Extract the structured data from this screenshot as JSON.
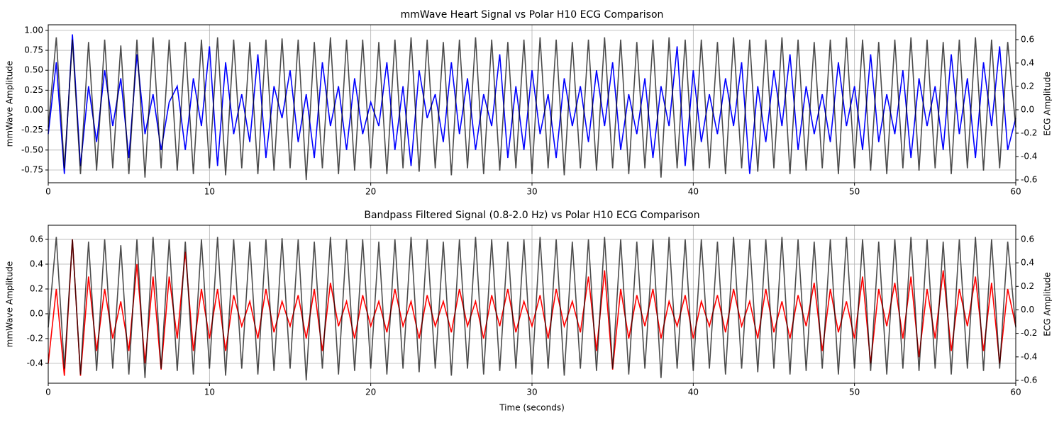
{
  "chart_data": [
    {
      "type": "line",
      "title": "mmWave Heart Signal vs Polar H10 ECG Comparison",
      "ylabel": "mmWave Amplitude",
      "y2label": "ECG Amplitude",
      "x": [
        0,
        0.5,
        1,
        1.5,
        2,
        2.5,
        3,
        3.5,
        4,
        4.5,
        5,
        5.5,
        6,
        6.5,
        7,
        7.5,
        8,
        8.5,
        9,
        9.5,
        10,
        10.5,
        11,
        11.5,
        12,
        12.5,
        13,
        13.5,
        14,
        14.5,
        15,
        15.5,
        16,
        16.5,
        17,
        17.5,
        18,
        18.5,
        19,
        19.5,
        20,
        20.5,
        21,
        21.5,
        22,
        22.5,
        23,
        23.5,
        24,
        24.5,
        25,
        25.5,
        26,
        26.5,
        27,
        27.5,
        28,
        28.5,
        29,
        29.5,
        30,
        30.5,
        31,
        31.5,
        32,
        32.5,
        33,
        33.5,
        34,
        34.5,
        35,
        35.5,
        36,
        36.5,
        37,
        37.5,
        38,
        38.5,
        39,
        39.5,
        40,
        40.5,
        41,
        41.5,
        42,
        42.5,
        43,
        43.5,
        44,
        44.5,
        45,
        45.5,
        46,
        46.5,
        47,
        47.5,
        48,
        48.5,
        49,
        49.5,
        50,
        50.5,
        51,
        51.5,
        52,
        52.5,
        53,
        53.5,
        54,
        54.5,
        55,
        55.5,
        56,
        56.5,
        57,
        57.5,
        58,
        58.5,
        59,
        59.5,
        60
      ],
      "series": [
        {
          "color": "#0000ff",
          "values": [
            -0.3,
            0.6,
            -0.8,
            0.95,
            -0.7,
            0.3,
            -0.4,
            0.5,
            -0.2,
            0.4,
            -0.6,
            0.7,
            -0.3,
            0.2,
            -0.5,
            0.1,
            0.3,
            -0.5,
            0.4,
            -0.2,
            0.8,
            -0.7,
            0.6,
            -0.3,
            0.2,
            -0.4,
            0.7,
            -0.6,
            0.3,
            -0.1,
            0.5,
            -0.4,
            0.2,
            -0.6,
            0.6,
            -0.2,
            0.3,
            -0.5,
            0.4,
            -0.3,
            0.1,
            -0.2,
            0.6,
            -0.5,
            0.3,
            -0.7,
            0.5,
            -0.1,
            0.2,
            -0.4,
            0.6,
            -0.3,
            0.4,
            -0.5,
            0.2,
            -0.2,
            0.7,
            -0.6,
            0.3,
            -0.5,
            0.5,
            -0.3,
            0.2,
            -0.6,
            0.4,
            -0.2,
            0.3,
            -0.4,
            0.5,
            -0.2,
            0.6,
            -0.5,
            0.2,
            -0.3,
            0.4,
            -0.6,
            0.3,
            -0.2,
            0.8,
            -0.7,
            0.5,
            -0.4,
            0.2,
            -0.3,
            0.4,
            -0.2,
            0.6,
            -0.8,
            0.3,
            -0.4,
            0.5,
            -0.2,
            0.7,
            -0.5,
            0.3,
            -0.3,
            0.2,
            -0.4,
            0.6,
            -0.2,
            0.3,
            -0.5,
            0.7,
            -0.4,
            0.2,
            -0.3,
            0.5,
            -0.6,
            0.4,
            -0.2,
            0.3,
            -0.5,
            0.7,
            -0.3,
            0.4,
            -0.6,
            0.6,
            -0.2,
            0.8,
            -0.5,
            -0.1
          ]
        },
        {
          "color": "#000000",
          "alpha": 0.7,
          "axis": "y2",
          "values": [
            -0.15,
            0.62,
            -0.5,
            0.6,
            -0.55,
            0.58,
            -0.52,
            0.6,
            -0.5,
            0.55,
            -0.55,
            0.6,
            -0.58,
            0.62,
            -0.5,
            0.6,
            -0.52,
            0.58,
            -0.55,
            0.6,
            -0.5,
            0.62,
            -0.56,
            0.6,
            -0.5,
            0.58,
            -0.55,
            0.6,
            -0.52,
            0.61,
            -0.5,
            0.6,
            -0.6,
            0.58,
            -0.5,
            0.62,
            -0.55,
            0.6,
            -0.52,
            0.6,
            -0.5,
            0.58,
            -0.55,
            0.6,
            -0.5,
            0.62,
            -0.53,
            0.6,
            -0.5,
            0.58,
            -0.56,
            0.6,
            -0.5,
            0.62,
            -0.55,
            0.6,
            -0.52,
            0.58,
            -0.5,
            0.6,
            -0.55,
            0.62,
            -0.5,
            0.6,
            -0.56,
            0.58,
            -0.5,
            0.6,
            -0.52,
            0.62,
            -0.5,
            0.6,
            -0.55,
            0.58,
            -0.5,
            0.6,
            -0.58,
            0.62,
            -0.5,
            0.6,
            -0.52,
            0.6,
            -0.5,
            0.58,
            -0.55,
            0.62,
            -0.5,
            0.6,
            -0.53,
            0.6,
            -0.5,
            0.62,
            -0.55,
            0.6,
            -0.52,
            0.58,
            -0.5,
            0.6,
            -0.55,
            0.62,
            -0.5,
            0.6,
            -0.52,
            0.58,
            -0.55,
            0.6,
            -0.5,
            0.62,
            -0.52,
            0.6,
            -0.5,
            0.58,
            -0.55,
            0.6,
            -0.5,
            0.62,
            -0.52,
            0.6,
            -0.5,
            0.58,
            -0.15
          ]
        }
      ],
      "xlim": [
        0,
        60
      ],
      "xticks": [
        0,
        10,
        20,
        30,
        40,
        50,
        60
      ],
      "ylim": [
        -0.91,
        1.07
      ],
      "yticks": [
        {
          "value": -0.75,
          "label": "-0.75"
        },
        {
          "value": -0.5,
          "label": "-0.50"
        },
        {
          "value": -0.25,
          "label": "-0.25"
        },
        {
          "value": 0,
          "label": "0.00"
        },
        {
          "value": 0.25,
          "label": "0.25"
        },
        {
          "value": 0.5,
          "label": "0.50"
        },
        {
          "value": 0.75,
          "label": "0.75"
        },
        {
          "value": 1,
          "label": "1.00"
        }
      ],
      "y2lim": [
        -0.624,
        0.727
      ],
      "y2ticks": [
        -0.6,
        -0.4,
        -0.2,
        {
          "value": 0,
          "label": "0.0"
        },
        0.2,
        0.4,
        0.6
      ],
      "grid": true
    },
    {
      "type": "line",
      "title": "Bandpass Filtered Signal (0.8-2.0 Hz) vs Polar H10 ECG Comparison",
      "ylabel": "mmWave Amplitude",
      "y2label": "ECG Amplitude",
      "xlabel": "Time (seconds)",
      "x": [
        0,
        0.5,
        1,
        1.5,
        2,
        2.5,
        3,
        3.5,
        4,
        4.5,
        5,
        5.5,
        6,
        6.5,
        7,
        7.5,
        8,
        8.5,
        9,
        9.5,
        10,
        10.5,
        11,
        11.5,
        12,
        12.5,
        13,
        13.5,
        14,
        14.5,
        15,
        15.5,
        16,
        16.5,
        17,
        17.5,
        18,
        18.5,
        19,
        19.5,
        20,
        20.5,
        21,
        21.5,
        22,
        22.5,
        23,
        23.5,
        24,
        24.5,
        25,
        25.5,
        26,
        26.5,
        27,
        27.5,
        28,
        28.5,
        29,
        29.5,
        30,
        30.5,
        31,
        31.5,
        32,
        32.5,
        33,
        33.5,
        34,
        34.5,
        35,
        35.5,
        36,
        36.5,
        37,
        37.5,
        38,
        38.5,
        39,
        39.5,
        40,
        40.5,
        41,
        41.5,
        42,
        42.5,
        43,
        43.5,
        44,
        44.5,
        45,
        45.5,
        46,
        46.5,
        47,
        47.5,
        48,
        48.5,
        49,
        49.5,
        50,
        50.5,
        51,
        51.5,
        52,
        52.5,
        53,
        53.5,
        54,
        54.5,
        55,
        55.5,
        56,
        56.5,
        57,
        57.5,
        58,
        58.5,
        59,
        59.5,
        60
      ],
      "series": [
        {
          "color": "#ff0000",
          "values": [
            -0.4,
            0.2,
            -0.5,
            0.6,
            -0.5,
            0.3,
            -0.3,
            0.2,
            -0.2,
            0.1,
            -0.3,
            0.4,
            -0.4,
            0.3,
            -0.45,
            0.3,
            -0.2,
            0.5,
            -0.3,
            0.2,
            -0.2,
            0.2,
            -0.3,
            0.15,
            -0.1,
            0.1,
            -0.2,
            0.2,
            -0.15,
            0.1,
            -0.1,
            0.15,
            -0.2,
            0.2,
            -0.3,
            0.25,
            -0.1,
            0.1,
            -0.2,
            0.15,
            -0.1,
            0.1,
            -0.15,
            0.2,
            -0.1,
            0.1,
            -0.2,
            0.15,
            -0.1,
            0.1,
            -0.15,
            0.2,
            -0.1,
            0.1,
            -0.2,
            0.15,
            -0.1,
            0.2,
            -0.15,
            0.1,
            -0.1,
            0.15,
            -0.2,
            0.2,
            -0.1,
            0.1,
            -0.15,
            0.3,
            -0.3,
            0.35,
            -0.45,
            0.2,
            -0.2,
            0.15,
            -0.1,
            0.2,
            -0.2,
            0.1,
            -0.1,
            0.15,
            -0.2,
            0.1,
            -0.1,
            0.15,
            -0.15,
            0.2,
            -0.1,
            0.1,
            -0.2,
            0.2,
            -0.15,
            0.1,
            -0.2,
            0.15,
            -0.1,
            0.25,
            -0.3,
            0.2,
            -0.15,
            0.1,
            -0.2,
            0.3,
            -0.4,
            0.2,
            -0.1,
            0.25,
            -0.2,
            0.3,
            -0.35,
            0.2,
            -0.2,
            0.35,
            -0.3,
            0.2,
            -0.1,
            0.3,
            -0.3,
            0.25,
            -0.4,
            0.2,
            -0.1
          ]
        },
        {
          "color": "#000000",
          "alpha": 0.7,
          "axis": "y2",
          "values": [
            -0.15,
            0.62,
            -0.5,
            0.6,
            -0.55,
            0.58,
            -0.52,
            0.6,
            -0.5,
            0.55,
            -0.55,
            0.6,
            -0.58,
            0.62,
            -0.5,
            0.6,
            -0.52,
            0.58,
            -0.55,
            0.6,
            -0.5,
            0.62,
            -0.56,
            0.6,
            -0.5,
            0.58,
            -0.55,
            0.6,
            -0.52,
            0.61,
            -0.5,
            0.6,
            -0.6,
            0.58,
            -0.5,
            0.62,
            -0.55,
            0.6,
            -0.52,
            0.6,
            -0.5,
            0.58,
            -0.55,
            0.6,
            -0.5,
            0.62,
            -0.53,
            0.6,
            -0.5,
            0.58,
            -0.56,
            0.6,
            -0.5,
            0.62,
            -0.55,
            0.6,
            -0.52,
            0.58,
            -0.5,
            0.6,
            -0.55,
            0.62,
            -0.5,
            0.6,
            -0.56,
            0.58,
            -0.5,
            0.6,
            -0.52,
            0.62,
            -0.5,
            0.6,
            -0.55,
            0.58,
            -0.5,
            0.6,
            -0.58,
            0.62,
            -0.5,
            0.6,
            -0.52,
            0.6,
            -0.5,
            0.58,
            -0.55,
            0.62,
            -0.5,
            0.6,
            -0.53,
            0.6,
            -0.5,
            0.62,
            -0.55,
            0.6,
            -0.52,
            0.58,
            -0.5,
            0.6,
            -0.55,
            0.62,
            -0.5,
            0.6,
            -0.52,
            0.58,
            -0.55,
            0.6,
            -0.5,
            0.62,
            -0.52,
            0.6,
            -0.5,
            0.58,
            -0.55,
            0.6,
            -0.5,
            0.62,
            -0.52,
            0.6,
            -0.5,
            0.58,
            -0.15
          ]
        }
      ],
      "xlim": [
        0,
        60
      ],
      "xticks": [
        0,
        10,
        20,
        30,
        40,
        50,
        60
      ],
      "ylim": [
        -0.56,
        0.714
      ],
      "yticks": [
        -0.4,
        -0.2,
        {
          "value": 0,
          "label": "0.0"
        },
        0.2,
        0.4,
        0.6
      ],
      "y2lim": [
        -0.624,
        0.72
      ],
      "y2ticks": [
        -0.6,
        -0.4,
        -0.2,
        {
          "value": 0,
          "label": "0.0"
        },
        0.2,
        0.4,
        0.6
      ],
      "grid": true
    }
  ]
}
